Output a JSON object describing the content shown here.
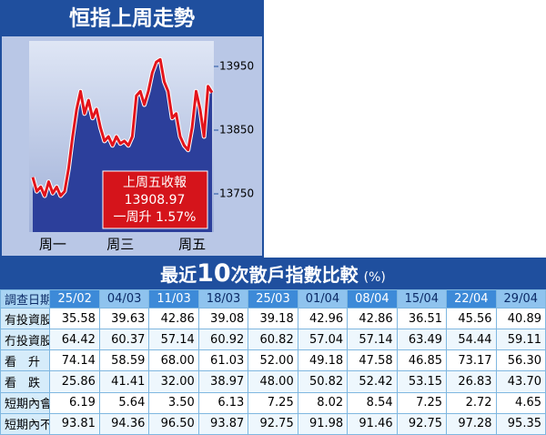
{
  "chart_data": {
    "type": "line",
    "title": "恒指上周走勢",
    "categories": [
      null,
      null,
      null,
      null,
      null,
      "周一",
      null,
      null,
      null,
      null,
      null,
      null,
      null,
      null,
      null,
      null,
      null,
      null,
      null,
      null,
      null,
      null,
      "周三",
      null,
      null,
      null,
      null,
      null,
      null,
      null,
      null,
      null,
      null,
      null,
      null,
      null,
      null,
      null,
      null,
      null,
      "周五",
      null,
      null,
      null,
      null,
      null
    ],
    "values": [
      13776,
      13754,
      13761,
      13747,
      13769,
      13751,
      13761,
      13747,
      13754,
      13790,
      13840,
      13883,
      13911,
      13876,
      13897,
      13869,
      13883,
      13854,
      13833,
      13840,
      13826,
      13840,
      13829,
      13833,
      13826,
      13840,
      13904,
      13911,
      13890,
      13911,
      13940,
      13957,
      13961,
      13926,
      13911,
      13869,
      13876,
      13840,
      13826,
      13819,
      13854,
      13911,
      13883,
      13840,
      13919,
      13909
    ],
    "color": "#e3141b",
    "ylim": [
      13690,
      13990
    ],
    "yticks": [
      13750,
      13850,
      13950
    ],
    "annotation": [
      "上周五收報",
      "13908.97",
      "一周升 1.57%"
    ]
  },
  "table": {
    "title": [
      "最近",
      "10",
      "次散戶指數比較"
    ],
    "unit": "(%)",
    "header": [
      "調查日期",
      "25/02",
      "04/03",
      "11/03",
      "18/03",
      "25/03",
      "01/04",
      "08/04",
      "15/04",
      "22/04",
      "29/04"
    ],
    "rows": [
      [
        "有投資股票",
        "35.58",
        "39.63",
        "42.86",
        "39.08",
        "39.18",
        "42.96",
        "42.86",
        "36.51",
        "45.56",
        "40.89"
      ],
      [
        "冇投資股票",
        "64.42",
        "60.37",
        "57.14",
        "60.92",
        "60.82",
        "57.04",
        "57.14",
        "63.49",
        "54.44",
        "59.11"
      ],
      [
        "看　升",
        "74.14",
        "58.59",
        "68.00",
        "61.03",
        "52.00",
        "49.18",
        "47.58",
        "46.85",
        "73.17",
        "56.30"
      ],
      [
        "看　跌",
        "25.86",
        "41.41",
        "32.00",
        "38.97",
        "48.00",
        "50.82",
        "52.42",
        "53.15",
        "26.83",
        "43.70"
      ],
      [
        "短期內會入市",
        "6.19",
        "5.64",
        "3.50",
        "6.13",
        "7.25",
        "8.02",
        "8.54",
        "7.25",
        "2.72",
        "4.65"
      ],
      [
        "短期內不會入市",
        "93.81",
        "94.36",
        "96.50",
        "93.87",
        "92.75",
        "91.98",
        "91.46",
        "92.75",
        "97.28",
        "95.35"
      ]
    ]
  }
}
